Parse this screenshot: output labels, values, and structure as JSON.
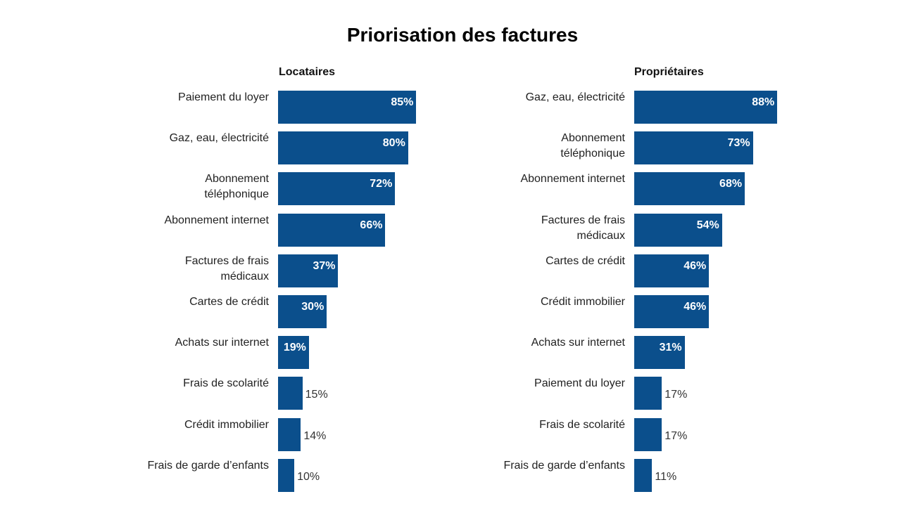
{
  "title": "Priorisation des factures",
  "colors": {
    "bar": "#0b4f8c"
  },
  "chart_data": [
    {
      "type": "bar",
      "orientation": "horizontal",
      "title": "Locataires",
      "categories": [
        "Paiement du loyer",
        "Gaz, eau, électricité",
        "Abonnement\ntéléphonique",
        "Abonnement internet",
        "Factures de frais\nmédicaux",
        "Cartes de crédit",
        "Achats sur internet",
        "Frais de scolarité",
        "Crédit immobilier",
        "Frais de garde d’enfants"
      ],
      "values": [
        85,
        80,
        72,
        66,
        37,
        30,
        19,
        15,
        14,
        10
      ],
      "value_labels": [
        "85%",
        "80%",
        "72%",
        "66%",
        "37%",
        "30%",
        "19%",
        "15%",
        "14%",
        "10%"
      ],
      "xlim": [
        0,
        100
      ]
    },
    {
      "type": "bar",
      "orientation": "horizontal",
      "title": "Propriétaires",
      "categories": [
        "Gaz, eau, électricité",
        "Abonnement\ntéléphonique",
        "Abonnement internet",
        "Factures de frais\nmédicaux",
        "Cartes de crédit",
        "Crédit immobilier",
        "Achats sur internet",
        "Paiement du loyer",
        "Frais de scolarité",
        "Frais de garde d’enfants"
      ],
      "values": [
        88,
        73,
        68,
        54,
        46,
        46,
        31,
        17,
        17,
        11
      ],
      "value_labels": [
        "88%",
        "73%",
        "68%",
        "54%",
        "46%",
        "46%",
        "31%",
        "17%",
        "17%",
        "11%"
      ],
      "xlim": [
        0,
        100
      ]
    }
  ]
}
